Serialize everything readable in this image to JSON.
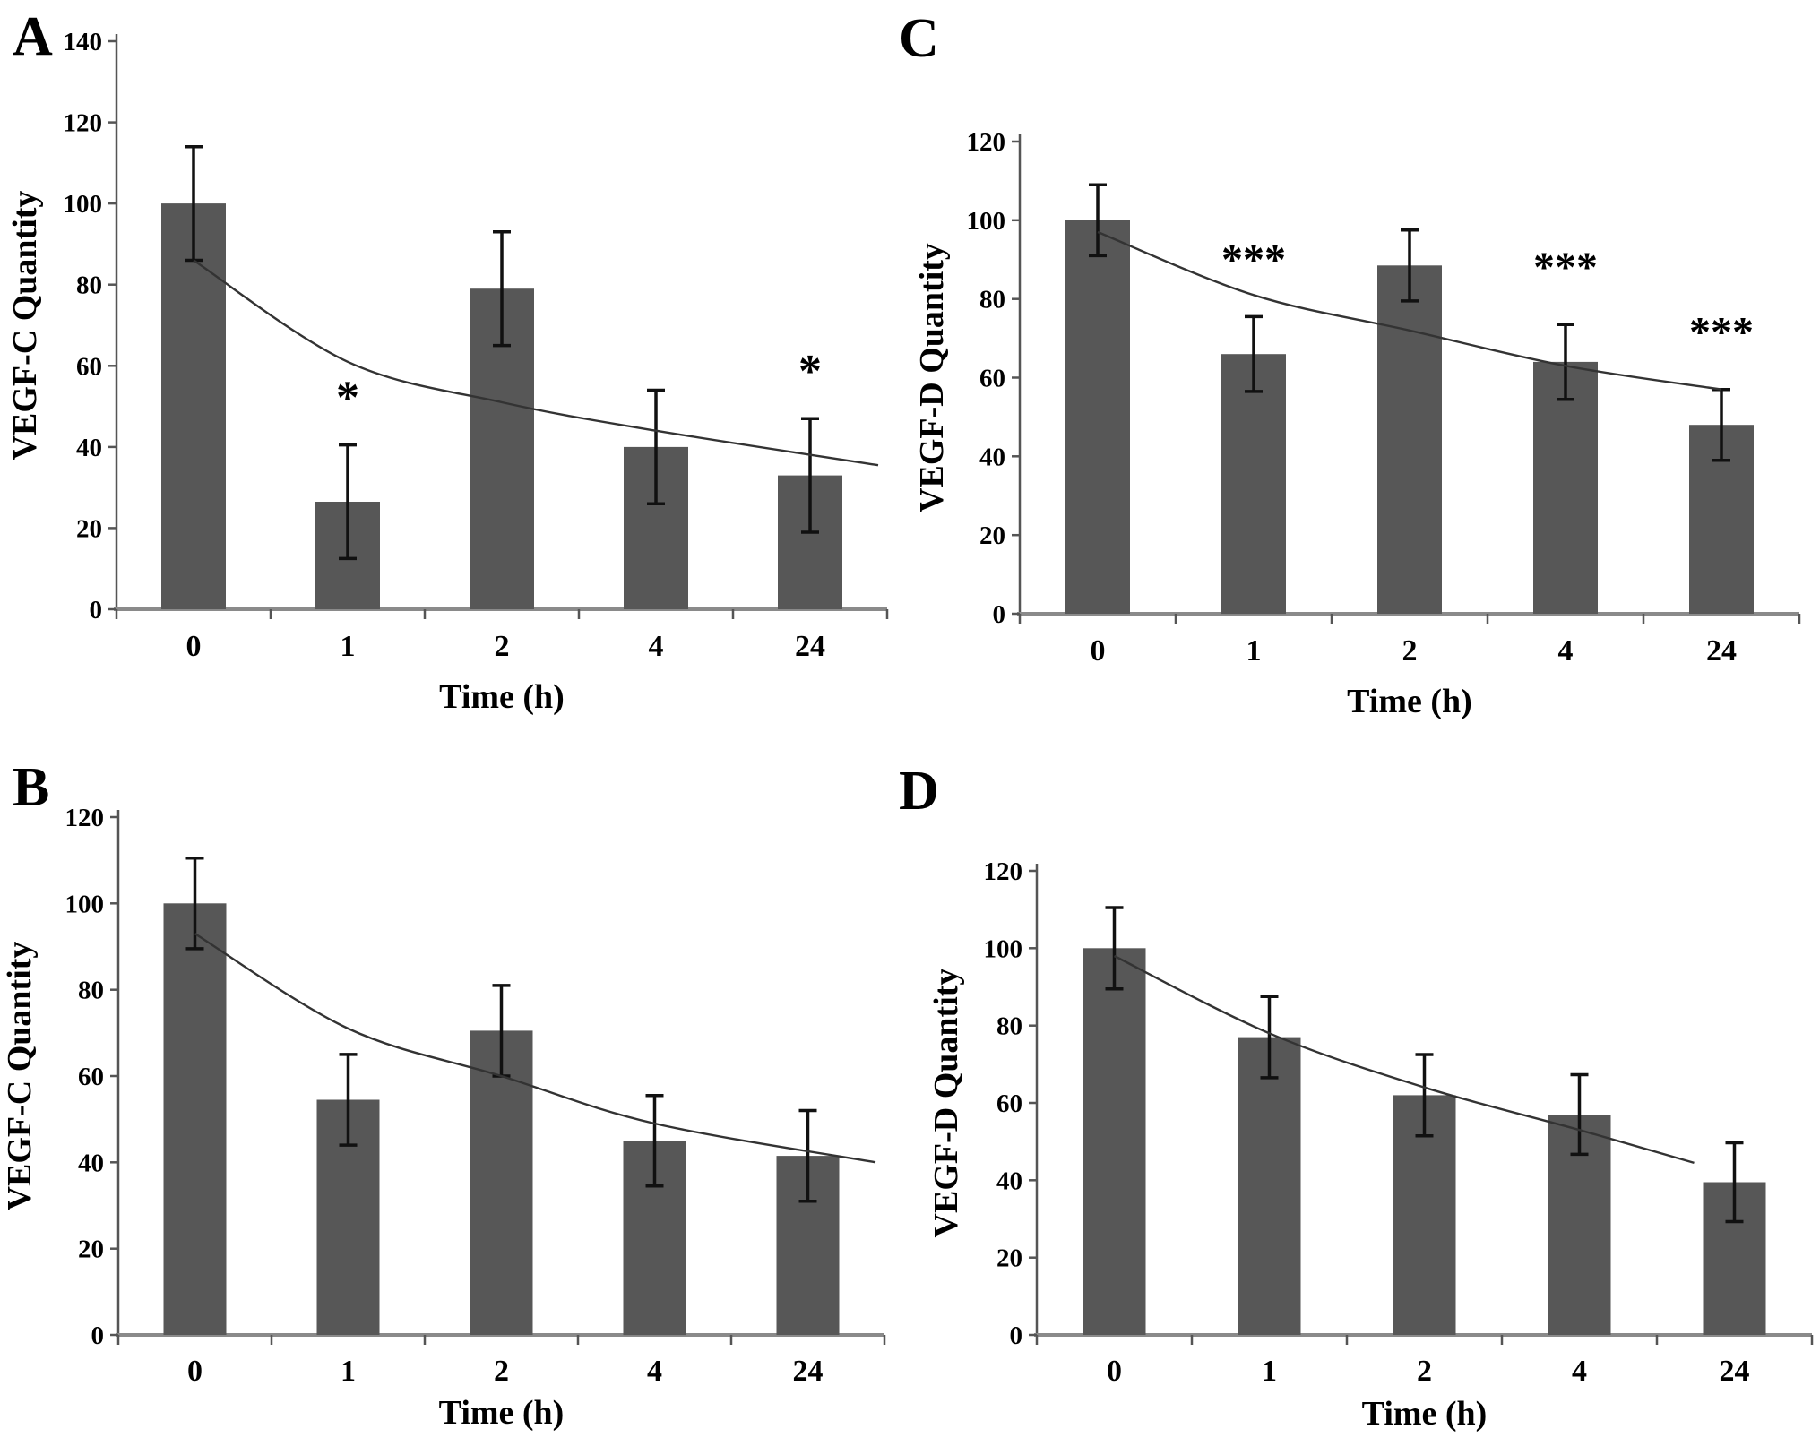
{
  "chart_data": [
    {
      "type": "bar",
      "panel_label": "A",
      "title": "",
      "xlabel": "Time (h)",
      "ylabel": "VEGF-C Quantity",
      "categories": [
        "0",
        "1",
        "2",
        "4",
        "24"
      ],
      "values": [
        100,
        26.5,
        79,
        40,
        33
      ],
      "errors": [
        14,
        14,
        14,
        14,
        14
      ],
      "significance": [
        "",
        "*",
        "",
        "",
        "*"
      ],
      "trend_line": [
        86,
        61,
        51,
        44,
        35.5
      ],
      "ylim": [
        0,
        140
      ],
      "ytick_step": 20,
      "bar_color": "#575757",
      "grid": false,
      "legend": "none"
    },
    {
      "type": "bar",
      "panel_label": "B",
      "title": "",
      "xlabel": "Time (h)",
      "ylabel": "VEGF-C Quantity",
      "categories": [
        "0",
        "1",
        "2",
        "4",
        "24"
      ],
      "values": [
        100,
        54.5,
        70.5,
        45,
        41.5
      ],
      "errors": [
        10.5,
        10.5,
        10.5,
        10.5,
        10.5
      ],
      "significance": [
        "",
        "",
        "",
        "",
        ""
      ],
      "trend_line": [
        93,
        71,
        60,
        49,
        40
      ],
      "ylim": [
        0,
        120
      ],
      "ytick_step": 20,
      "bar_color": "#575757",
      "grid": false,
      "legend": "none"
    },
    {
      "type": "bar",
      "panel_label": "C",
      "title": "",
      "xlabel": "Time (h)",
      "ylabel": "VEGF-D Quantity",
      "categories": [
        "0",
        "1",
        "2",
        "4",
        "24"
      ],
      "values": [
        100,
        66,
        88.5,
        64,
        48
      ],
      "errors": [
        9,
        9.5,
        9,
        9.5,
        9
      ],
      "significance": [
        "",
        "***",
        "",
        "***",
        "***"
      ],
      "trend_line": [
        97,
        81,
        72,
        63,
        57
      ],
      "ylim": [
        0,
        120
      ],
      "ytick_step": 20,
      "bar_color": "#575757",
      "grid": false,
      "legend": "none"
    },
    {
      "type": "bar",
      "panel_label": "D",
      "title": "",
      "xlabel": "Time (h)",
      "ylabel": "VEGF-D Quantity",
      "categories": [
        "0",
        "1",
        "2",
        "4",
        "24"
      ],
      "values": [
        100,
        77,
        62,
        57,
        39.5
      ],
      "errors": [
        10.5,
        10.5,
        10.5,
        10.3,
        10.2
      ],
      "significance": [
        "",
        "",
        "",
        "",
        ""
      ],
      "trend_line": [
        98,
        78,
        64,
        53,
        44.5
      ],
      "ylim": [
        0,
        120
      ],
      "ytick_step": 20,
      "bar_color": "#575757",
      "grid": false,
      "legend": "none"
    }
  ],
  "styles": {
    "background": "#ffffff",
    "bar_color": "#575757",
    "error_bar_color": "#111111",
    "trend_line_color": "#333333",
    "x_axis_color": "#8a8a8a",
    "y_axis_color": "#555555",
    "text_color": "#000000"
  }
}
